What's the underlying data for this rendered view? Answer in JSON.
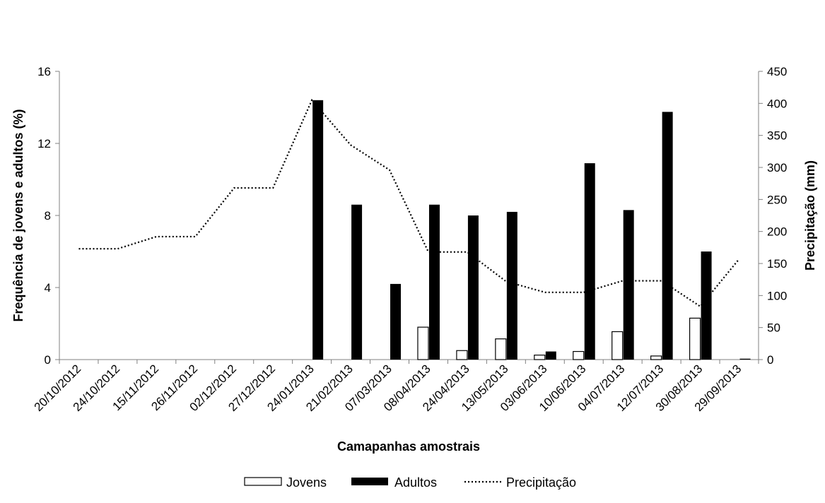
{
  "chart_data": {
    "type": "bar",
    "categories": [
      "20/10/2012",
      "24/10/2012",
      "15/11/2012",
      "26/11/2012",
      "02/12/2012",
      "27/12/2012",
      "24/01/2013",
      "21/02/2013",
      "07/03/2013",
      "08/04/2013",
      "24/04/2013",
      "13/05/2013",
      "03/06/2013",
      "10/06/2013",
      "04/07/2013",
      "12/07/2013",
      "30/08/2013",
      "29/09/2013"
    ],
    "series": [
      {
        "name": "Jovens",
        "type": "bar",
        "axis": "left",
        "color": "#ffffff",
        "values": [
          0,
          0,
          0,
          0,
          0,
          0,
          0,
          0,
          0,
          1.8,
          0.5,
          1.15,
          0.25,
          0.45,
          1.55,
          0.2,
          2.3,
          0
        ]
      },
      {
        "name": "Adultos",
        "type": "bar",
        "axis": "left",
        "color": "#000000",
        "values": [
          0,
          0,
          0,
          0,
          0,
          0,
          14.4,
          8.6,
          4.2,
          8.6,
          8.0,
          8.2,
          0.45,
          10.9,
          8.3,
          13.75,
          6.0,
          0.05
        ]
      },
      {
        "name": "Precipitação",
        "type": "line",
        "axis": "right",
        "style": "dotted",
        "color": "#000000",
        "values": [
          173,
          173,
          192,
          192,
          268,
          268,
          405,
          335,
          296,
          168,
          168,
          122,
          105,
          105,
          123,
          123,
          83,
          157
        ]
      }
    ],
    "xlabel": "Camapanhas amostrais",
    "ylabel": "Frequência de jovens e adultos (%)",
    "y2label": "Precipitação (mm)",
    "ylim": [
      0,
      16
    ],
    "yticks": [
      0,
      4,
      8,
      12,
      16
    ],
    "y2lim": [
      0,
      450
    ],
    "y2ticks": [
      0,
      50,
      100,
      150,
      200,
      250,
      300,
      350,
      400,
      450
    ],
    "grid": false,
    "legend_position": "bottom"
  }
}
